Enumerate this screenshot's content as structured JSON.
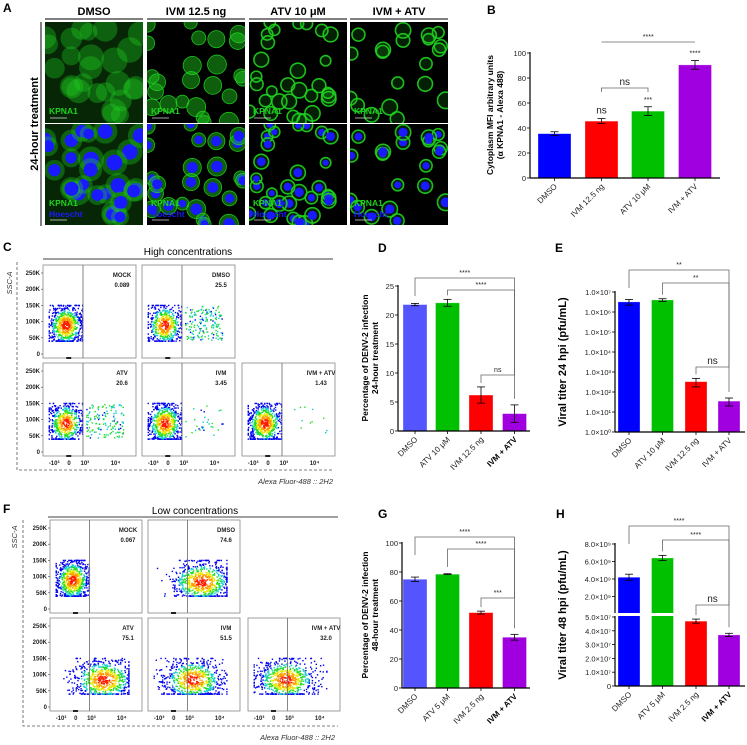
{
  "panel_labels": {
    "A": "A",
    "B": "B",
    "C": "C",
    "D": "D",
    "E": "E",
    "F": "F",
    "G": "G",
    "H": "H"
  },
  "panel_a": {
    "columns": [
      "DMSO",
      "IVM 12.5 ng",
      "ATV 10 μM",
      "IVM + ATV"
    ],
    "row_label": "24-hour treatment",
    "stain_kpna1": "KPNA1",
    "stain_hoechst": "Hoescht",
    "colors": {
      "kpna1": "#1fd11f",
      "hoechst": "#1a1aff",
      "background": "#000000"
    }
  },
  "panel_c": {
    "title": "High concentrations",
    "y_axis": "SSC-A",
    "x_axis": "Alexa Fluor-488 :: 2H2",
    "y_ticks": [
      "250K",
      "200K",
      "150K",
      "100K",
      "50K",
      "0"
    ],
    "x_ticks": [
      "-10³",
      "0",
      "10³",
      "10⁴"
    ],
    "plots": [
      {
        "name": "MOCK",
        "value": "0.089"
      },
      {
        "name": "DMSO",
        "value": "25.5"
      },
      {
        "name": "ATV",
        "value": "20.6"
      },
      {
        "name": "IVM",
        "value": "3.45"
      },
      {
        "name": "IVM + ATV",
        "value": "1.43"
      }
    ]
  },
  "panel_f": {
    "title": "Low concentrations",
    "y_axis": "SSC-A",
    "x_axis": "Alexa Fluor-488 :: 2H2",
    "y_ticks": [
      "250K",
      "200K",
      "150K",
      "100K",
      "50K",
      "0"
    ],
    "x_ticks": [
      "-10³",
      "0",
      "10³",
      "10⁴"
    ],
    "plots": [
      {
        "name": "MOCK",
        "value": "0.067"
      },
      {
        "name": "DMSO",
        "value": "74.6"
      },
      {
        "name": "ATV",
        "value": "75.1"
      },
      {
        "name": "IVM",
        "value": "51.5"
      },
      {
        "name": "IVM + ATV",
        "value": "32.0"
      }
    ]
  },
  "chart_data": [
    {
      "panel": "B",
      "type": "bar",
      "categories": [
        "DMSO",
        "IVM 12.5 ng",
        "ATV 10 μM",
        "IVM + ATV"
      ],
      "values": [
        35.5,
        45.5,
        53.5,
        90.5
      ],
      "errors": [
        1.5,
        2.0,
        3.5,
        3.5
      ],
      "colors": [
        "#0000ff",
        "#ff0000",
        "#00c000",
        "#a000e0"
      ],
      "ylabel": "Cytoplasm MFI arbitrary units",
      "ylabel2": "(α KPNA1 - Alexa 488)",
      "ylim": [
        0,
        100
      ],
      "yscale": "linear",
      "yticks": [
        0,
        20,
        40,
        60,
        80,
        100
      ],
      "ytick_labels": [
        "0",
        "20",
        "40",
        "60",
        "80",
        "100"
      ],
      "bar_annotations": [
        "",
        "ns",
        "***",
        "****"
      ],
      "significance": [
        {
          "from": 1,
          "to": 2,
          "label": "ns"
        },
        {
          "from": 1,
          "to": 3,
          "label": "****"
        }
      ]
    },
    {
      "panel": "D",
      "type": "bar",
      "categories": [
        "DMSO",
        "ATV 10 μM",
        "IVM 12.5 ng",
        "IVM + ATV"
      ],
      "values": [
        21.8,
        22.1,
        6.2,
        3.0
      ],
      "errors": [
        0.2,
        0.6,
        1.4,
        1.5
      ],
      "colors": [
        "#5555ff",
        "#00c000",
        "#ff0000",
        "#a000e0"
      ],
      "ylabel": "Percentage of DENV-2 infection",
      "ylabel2": "24-hour treatment",
      "ylim": [
        0,
        25
      ],
      "yscale": "linear",
      "yticks": [
        0,
        5,
        10,
        15,
        20,
        25
      ],
      "ytick_labels": [
        "0",
        "5",
        "10",
        "15",
        "20",
        "25"
      ],
      "significance": [
        {
          "from": 0,
          "to": 3,
          "label": "****"
        },
        {
          "from": 1,
          "to": 3,
          "label": "****"
        },
        {
          "from": 2,
          "to": 3,
          "label": "ns"
        }
      ]
    },
    {
      "panel": "E",
      "type": "bar",
      "categories": [
        "DMSO",
        "ATV 10 μM",
        "IVM 12.5 ng",
        "IVM + ATV"
      ],
      "values": [
        3200000,
        4000000,
        330,
        35
      ],
      "errors": [
        1000000,
        600000,
        150,
        15
      ],
      "colors": [
        "#0000ff",
        "#00c000",
        "#ff0000",
        "#a000e0"
      ],
      "ylabel": "Viral titer 24 hpi (pfu/mL)",
      "ylim": [
        1,
        10000000
      ],
      "yscale": "log",
      "yticks": [
        1,
        10,
        100,
        1000,
        10000,
        100000,
        1000000,
        10000000
      ],
      "ytick_labels": [
        "1.0×10⁰",
        "1.0×10¹",
        "1.0×10²",
        "1.0×10³",
        "1.0×10⁴",
        "1.0×10⁵",
        "1.0×10⁶",
        "1.0×10⁷"
      ],
      "significance": [
        {
          "from": 0,
          "to": 3,
          "label": "**"
        },
        {
          "from": 1,
          "to": 3,
          "label": "**"
        },
        {
          "from": 2,
          "to": 3,
          "label": "ns"
        }
      ]
    },
    {
      "panel": "G",
      "type": "bar",
      "categories": [
        "DMSO",
        "ATV 5 μM",
        "IVM 2.5 ng",
        "IVM + ATV"
      ],
      "values": [
        75,
        78.5,
        52,
        35
      ],
      "errors": [
        1.5,
        0.3,
        1.0,
        2.0
      ],
      "colors": [
        "#5555ff",
        "#00c000",
        "#ff0000",
        "#a000e0"
      ],
      "ylabel": "Percentage of DENV-2 infection",
      "ylabel2": "48-hour treatment",
      "ylim": [
        0,
        100
      ],
      "yscale": "linear",
      "yticks": [
        0,
        20,
        40,
        60,
        80,
        100
      ],
      "ytick_labels": [
        "0",
        "20",
        "40",
        "60",
        "80",
        "100"
      ],
      "significance": [
        {
          "from": 0,
          "to": 3,
          "label": "****"
        },
        {
          "from": 1,
          "to": 3,
          "label": "****"
        },
        {
          "from": 2,
          "to": 3,
          "label": "***"
        }
      ]
    },
    {
      "panel": "H",
      "type": "bar",
      "categories": [
        "DMSO",
        "ATV 5 μM",
        "IVM 2.5 ng",
        "IVM + ATV"
      ],
      "values": [
        4200000000,
        6400000000,
        47000000,
        37000000
      ],
      "errors": [
        350000000,
        300000000,
        1500000,
        1200000
      ],
      "colors": [
        "#0000ff",
        "#00c000",
        "#ff0000",
        "#a000e0"
      ],
      "ylabel": "Viral titer 48 hpi (pfu/mL)",
      "yscale": "broken",
      "ylim_lower": [
        0,
        50000000
      ],
      "ylim_upper": [
        0,
        8000000000
      ],
      "yticks": [
        0,
        10000000,
        20000000,
        30000000,
        40000000,
        50000000,
        2000000000,
        4000000000,
        6000000000,
        8000000000
      ],
      "ytick_labels": [
        "0",
        "1.0×10⁷",
        "2.0×10⁷",
        "3.0×10⁷",
        "4.0×10⁷",
        "5.0×10⁷",
        "2.0×10⁹",
        "4.0×10⁹",
        "6.0×10⁹",
        "8.0×10⁹"
      ],
      "significance": [
        {
          "from": 0,
          "to": 3,
          "label": "****"
        },
        {
          "from": 1,
          "to": 3,
          "label": "****"
        },
        {
          "from": 2,
          "to": 3,
          "label": "ns"
        }
      ]
    }
  ]
}
